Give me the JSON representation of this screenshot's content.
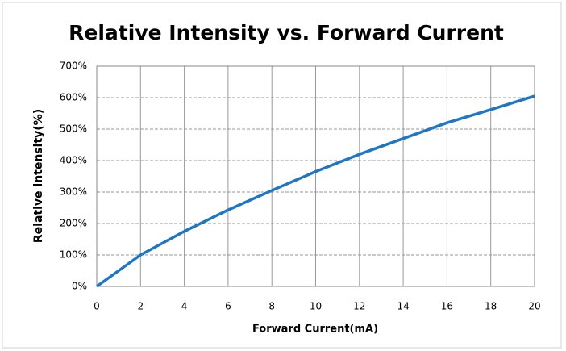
{
  "chart_data": {
    "type": "line",
    "title": "Relative Intensity vs. Forward Current",
    "x_label": "Forward Current(mA)",
    "y_label": "Relative intensity(%)",
    "x": [
      0,
      2,
      4,
      6,
      8,
      10,
      12,
      14,
      16,
      18,
      20
    ],
    "series": [
      {
        "name": "Relative intensity",
        "color": "#1f77c4",
        "values": [
          0,
          100,
          175,
          243,
          305,
          365,
          420,
          470,
          520,
          562,
          605
        ]
      }
    ],
    "xlim": [
      0,
      20
    ],
    "xticks": [
      0,
      2,
      4,
      6,
      8,
      10,
      12,
      14,
      16,
      18,
      20
    ],
    "ylim": [
      0,
      700
    ],
    "yticks": [
      {
        "value": 0,
        "label": "0%"
      },
      {
        "value": 100,
        "label": "100%"
      },
      {
        "value": 200,
        "label": "200%"
      },
      {
        "value": 300,
        "label": "300%"
      },
      {
        "value": 400,
        "label": "400%"
      },
      {
        "value": 500,
        "label": "500%"
      },
      {
        "value": 600,
        "label": "600%"
      },
      {
        "value": 700,
        "label": "700%"
      }
    ],
    "grid": true,
    "legend": false
  }
}
